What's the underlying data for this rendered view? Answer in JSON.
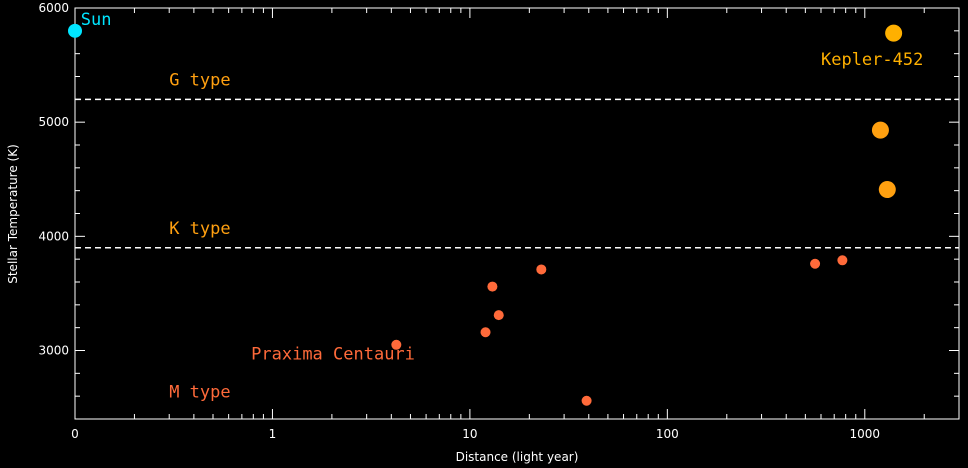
{
  "chart_data": {
    "type": "scatter",
    "xlabel": "Distance (light year)",
    "ylabel": "Stellar Temperature (K)",
    "x_scale": "log",
    "xlim": [
      0.1,
      3000
    ],
    "ylim": [
      2400,
      6000
    ],
    "x_ticks": [
      {
        "value": 0.1,
        "label": "0"
      },
      {
        "value": 1,
        "label": "1"
      },
      {
        "value": 10,
        "label": "10"
      },
      {
        "value": 100,
        "label": "100"
      },
      {
        "value": 1000,
        "label": "1000"
      }
    ],
    "y_ticks": [
      {
        "value": 3000,
        "label": "3000"
      },
      {
        "value": 4000,
        "label": "4000"
      },
      {
        "value": 5000,
        "label": "5000"
      },
      {
        "value": 6000,
        "label": "6000"
      }
    ],
    "grid": false,
    "reference_lines": [
      {
        "y": 5200,
        "style": "dashed",
        "color": "#ffffff"
      },
      {
        "y": 3900,
        "style": "dashed",
        "color": "#ffffff"
      }
    ],
    "points": [
      {
        "x": 0.1,
        "y": 5800,
        "color": "#00e5ff",
        "size": "medium"
      },
      {
        "x": 1400,
        "y": 5780,
        "color": "#ffb000",
        "size": "large"
      },
      {
        "x": 1200,
        "y": 4930,
        "color": "#ffa010",
        "size": "large"
      },
      {
        "x": 1300,
        "y": 4410,
        "color": "#ffa010",
        "size": "large"
      },
      {
        "x": 4.24,
        "y": 3050,
        "color": "#ff6a3a",
        "size": "small"
      },
      {
        "x": 12,
        "y": 3160,
        "color": "#ff6a3a",
        "size": "small"
      },
      {
        "x": 13,
        "y": 3560,
        "color": "#ff6a3a",
        "size": "small"
      },
      {
        "x": 14,
        "y": 3310,
        "color": "#ff6a3a",
        "size": "small"
      },
      {
        "x": 23,
        "y": 3710,
        "color": "#ff6a3a",
        "size": "small"
      },
      {
        "x": 39,
        "y": 2560,
        "color": "#ff6a3a",
        "size": "small"
      },
      {
        "x": 560,
        "y": 3760,
        "color": "#ff6a3a",
        "size": "small"
      },
      {
        "x": 770,
        "y": 3790,
        "color": "#ff6a3a",
        "size": "small"
      }
    ],
    "annotations": [
      {
        "text": "Sun",
        "color": "#00e5ff",
        "x": 0.107,
        "y": 5850
      },
      {
        "text": "Kepler-452",
        "color": "#ffb000",
        "x": 600,
        "y": 5500
      },
      {
        "text": "G type",
        "color": "#ffa010",
        "x": 0.3,
        "y": 5320
      },
      {
        "text": "K type",
        "color": "#ffa010",
        "x": 0.3,
        "y": 4020
      },
      {
        "text": "Praxima Centauri",
        "color": "#ff6a3a",
        "x": 0.78,
        "y": 2920
      },
      {
        "text": "M type",
        "color": "#ff6a3a",
        "x": 0.3,
        "y": 2590
      }
    ]
  },
  "colors": {
    "background": "#000000",
    "axes": "#ffffff"
  }
}
